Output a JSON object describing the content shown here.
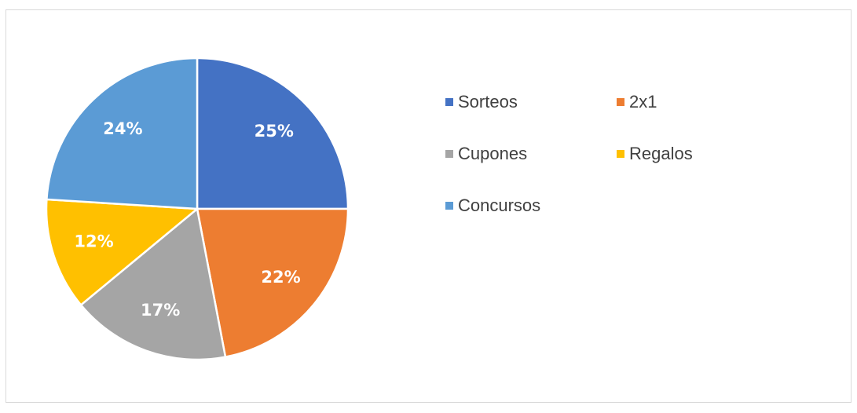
{
  "chart_data": {
    "type": "pie",
    "categories": [
      "Sorteos",
      "2x1",
      "Cupones",
      "Regalos",
      "Concursos"
    ],
    "values": [
      25,
      22,
      17,
      12,
      24
    ],
    "value_labels": [
      "25%",
      "22%",
      "17%",
      "12%",
      "24%"
    ],
    "colors": [
      "#4472c4",
      "#ed7d31",
      "#a5a5a5",
      "#ffc000",
      "#5b9bd5"
    ],
    "legend": "right"
  }
}
